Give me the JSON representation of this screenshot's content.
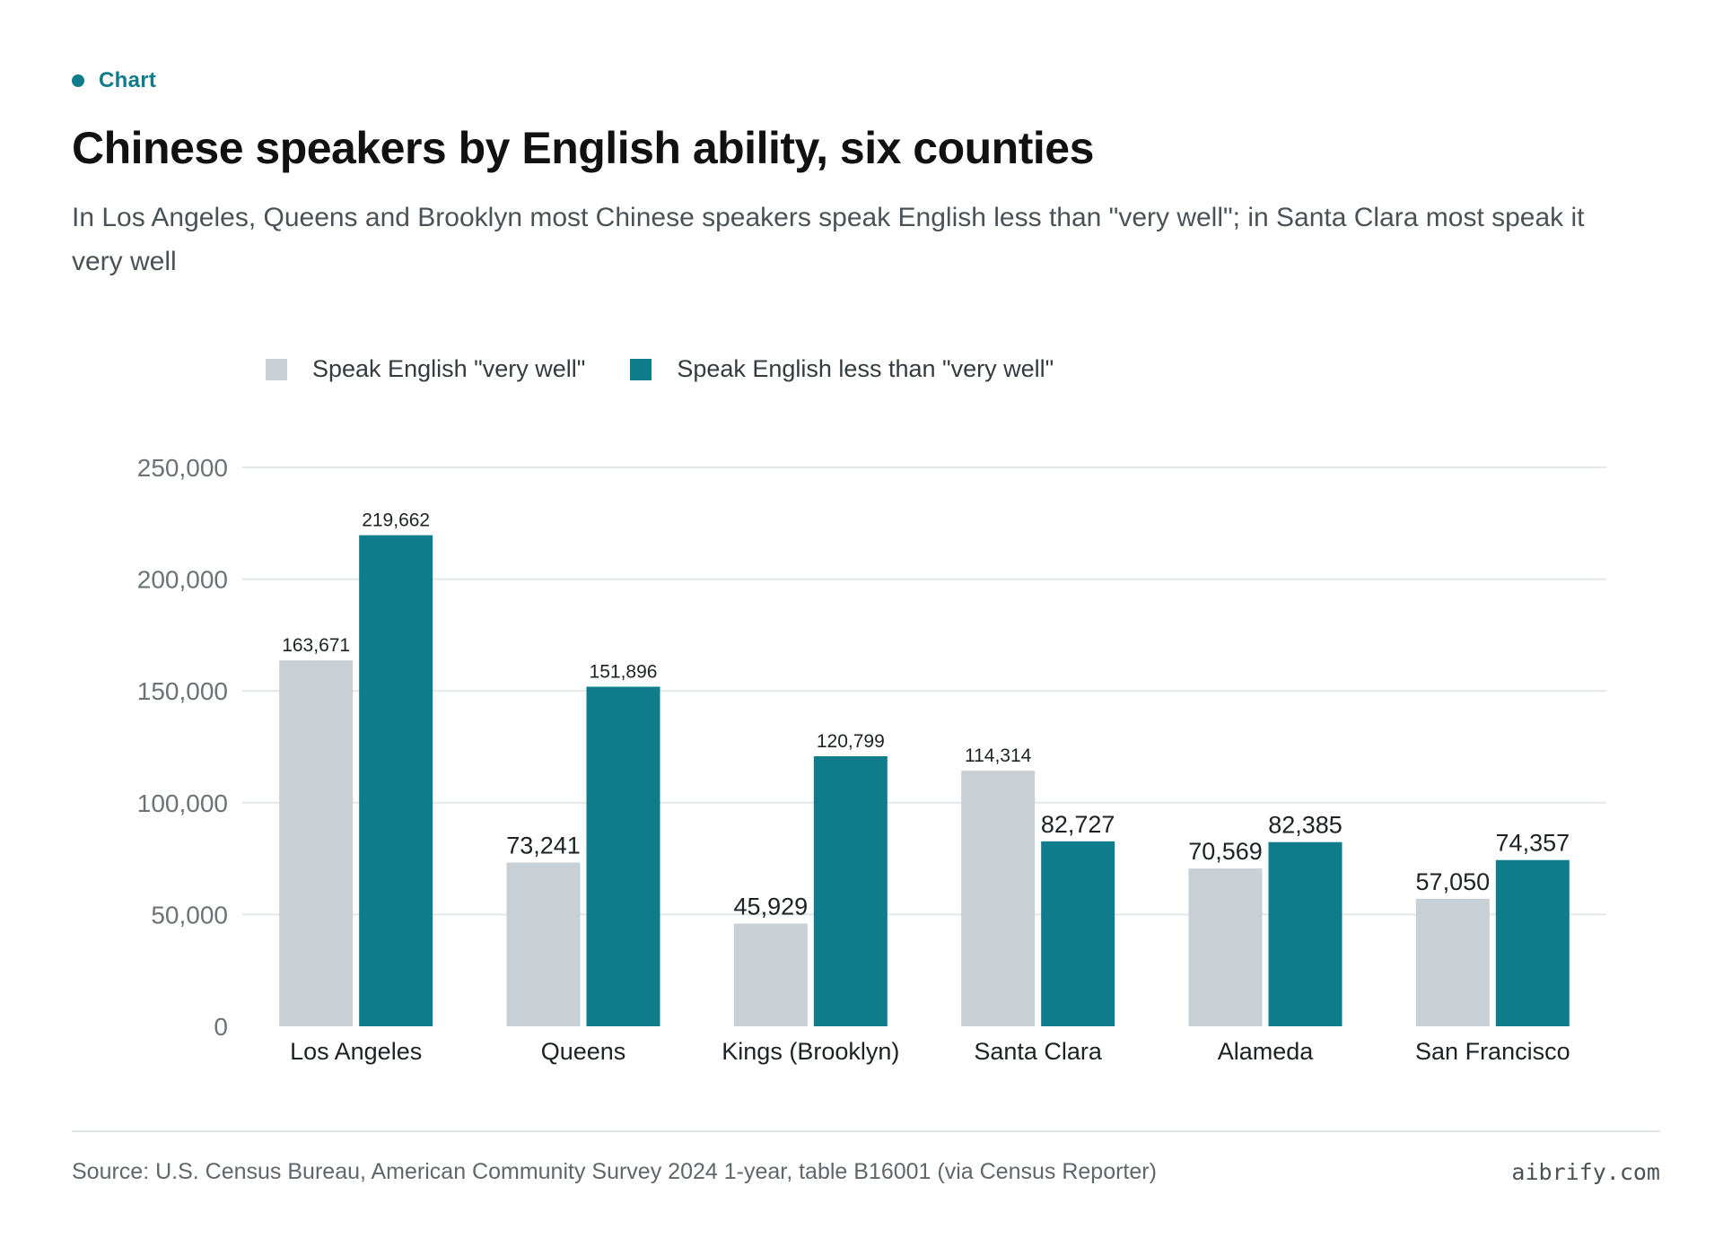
{
  "kicker": {
    "label": "Chart"
  },
  "header": {
    "title": "Chinese speakers by English ability, six counties",
    "subtitle": "In Los Angeles, Queens and Brooklyn most Chinese speakers speak English less than \"very well\"; in Santa Clara most speak it very well"
  },
  "footer": {
    "source": "Source: U.S. Census Bureau, American Community Survey 2024 1-year, table B16001 (via Census Reporter)",
    "brand": "aibrify.com"
  },
  "colors": {
    "accent": "#0e7c8a",
    "series_light": "#c9d0d5",
    "series_dark": "#0e7c8a"
  },
  "chart_data": {
    "type": "bar",
    "title": "",
    "xlabel": "",
    "ylabel": "",
    "categories": [
      "Los Angeles",
      "Queens",
      "Kings (Brooklyn)",
      "Santa Clara",
      "Alameda",
      "San Francisco"
    ],
    "series": [
      {
        "name": "Speak English \"very well\"",
        "color": "#c9d0d5",
        "values": [
          163671,
          73241,
          45929,
          114314,
          70569,
          57050
        ],
        "labels": [
          "163,671",
          "73,241",
          "45,929",
          "114,314",
          "70,569",
          "57,050"
        ]
      },
      {
        "name": "Speak English less than \"very well\"",
        "color": "#0e7c8a",
        "values": [
          219662,
          151896,
          120799,
          82727,
          82385,
          74357
        ],
        "labels": [
          "219,662",
          "151,896",
          "120,799",
          "82,727",
          "82,385",
          "74,357"
        ]
      }
    ],
    "ylim": [
      0,
      250000
    ],
    "yticks": [
      0,
      50000,
      100000,
      150000,
      200000,
      250000
    ],
    "ytick_labels": [
      "0",
      "50,000",
      "100,000",
      "150,000",
      "200,000",
      "250,000"
    ],
    "grid": true,
    "legend": "top-left"
  }
}
